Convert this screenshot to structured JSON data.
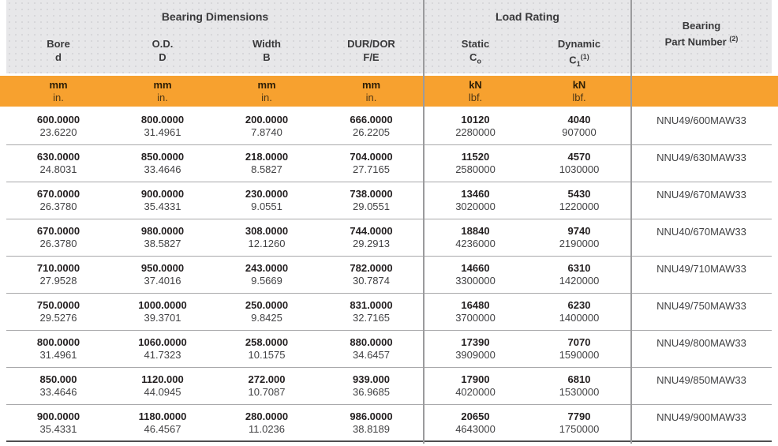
{
  "colors": {
    "accent_orange": "#f7a12f",
    "header_gray": "#e7e7e9",
    "divider_gray": "#9b9b9d"
  },
  "groups": [
    {
      "title": "Bearing Dimensions"
    },
    {
      "title": "Load Rating"
    }
  ],
  "part_header": {
    "line1": "Bearing",
    "line2": "Part Number",
    "sup": "(2)"
  },
  "columns": [
    {
      "name": "Bore",
      "symbol": "d",
      "unit_top": "mm",
      "unit_bottom": "in."
    },
    {
      "name": "O.D.",
      "symbol": "D",
      "unit_top": "mm",
      "unit_bottom": "in."
    },
    {
      "name": "Width",
      "symbol": "B",
      "unit_top": "mm",
      "unit_bottom": "in."
    },
    {
      "name": "DUR/DOR",
      "symbol": "F/E",
      "unit_top": "mm",
      "unit_bottom": "in."
    },
    {
      "name": "Static",
      "symbol_base": "C",
      "symbol_sub": "o",
      "unit_top": "kN",
      "unit_bottom": "lbf."
    },
    {
      "name": "Dynamic",
      "symbol_base": "C",
      "symbol_sub": "1",
      "symbol_sup": "(1)",
      "unit_top": "kN",
      "unit_bottom": "lbf."
    }
  ],
  "rows": [
    {
      "bore": [
        "600.0000",
        "23.6220"
      ],
      "od": [
        "800.0000",
        "31.4961"
      ],
      "width": [
        "200.0000",
        "7.8740"
      ],
      "dur": [
        "666.0000",
        "26.2205"
      ],
      "static": [
        "10120",
        "2280000"
      ],
      "dynamic": [
        "4040",
        "907000"
      ],
      "part": "NNU49/600MAW33"
    },
    {
      "bore": [
        "630.0000",
        "24.8031"
      ],
      "od": [
        "850.0000",
        "33.4646"
      ],
      "width": [
        "218.0000",
        "8.5827"
      ],
      "dur": [
        "704.0000",
        "27.7165"
      ],
      "static": [
        "11520",
        "2580000"
      ],
      "dynamic": [
        "4570",
        "1030000"
      ],
      "part": "NNU49/630MAW33"
    },
    {
      "bore": [
        "670.0000",
        "26.3780"
      ],
      "od": [
        "900.0000",
        "35.4331"
      ],
      "width": [
        "230.0000",
        "9.0551"
      ],
      "dur": [
        "738.0000",
        "29.0551"
      ],
      "static": [
        "13460",
        "3020000"
      ],
      "dynamic": [
        "5430",
        "1220000"
      ],
      "part": "NNU49/670MAW33"
    },
    {
      "bore": [
        "670.0000",
        "26.3780"
      ],
      "od": [
        "980.0000",
        "38.5827"
      ],
      "width": [
        "308.0000",
        "12.1260"
      ],
      "dur": [
        "744.0000",
        "29.2913"
      ],
      "static": [
        "18840",
        "4236000"
      ],
      "dynamic": [
        "9740",
        "2190000"
      ],
      "part": "NNU40/670MAW33"
    },
    {
      "bore": [
        "710.0000",
        "27.9528"
      ],
      "od": [
        "950.0000",
        "37.4016"
      ],
      "width": [
        "243.0000",
        "9.5669"
      ],
      "dur": [
        "782.0000",
        "30.7874"
      ],
      "static": [
        "14660",
        "3300000"
      ],
      "dynamic": [
        "6310",
        "1420000"
      ],
      "part": "NNU49/710MAW33"
    },
    {
      "bore": [
        "750.0000",
        "29.5276"
      ],
      "od": [
        "1000.0000",
        "39.3701"
      ],
      "width": [
        "250.0000",
        "9.8425"
      ],
      "dur": [
        "831.0000",
        "32.7165"
      ],
      "static": [
        "16480",
        "3700000"
      ],
      "dynamic": [
        "6230",
        "1400000"
      ],
      "part": "NNU49/750MAW33"
    },
    {
      "bore": [
        "800.0000",
        "31.4961"
      ],
      "od": [
        "1060.0000",
        "41.7323"
      ],
      "width": [
        "258.0000",
        "10.1575"
      ],
      "dur": [
        "880.0000",
        "34.6457"
      ],
      "static": [
        "17390",
        "3909000"
      ],
      "dynamic": [
        "7070",
        "1590000"
      ],
      "part": "NNU49/800MAW33"
    },
    {
      "bore": [
        "850.000",
        "33.4646"
      ],
      "od": [
        "1120.000",
        "44.0945"
      ],
      "width": [
        "272.000",
        "10.7087"
      ],
      "dur": [
        "939.000",
        "36.9685"
      ],
      "static": [
        "17900",
        "4020000"
      ],
      "dynamic": [
        "6810",
        "1530000"
      ],
      "part": "NNU49/850MAW33"
    },
    {
      "bore": [
        "900.0000",
        "35.4331"
      ],
      "od": [
        "1180.0000",
        "46.4567"
      ],
      "width": [
        "280.0000",
        "11.0236"
      ],
      "dur": [
        "986.0000",
        "38.8189"
      ],
      "static": [
        "20650",
        "4643000"
      ],
      "dynamic": [
        "7790",
        "1750000"
      ],
      "part": "NNU49/900MAW33"
    }
  ]
}
